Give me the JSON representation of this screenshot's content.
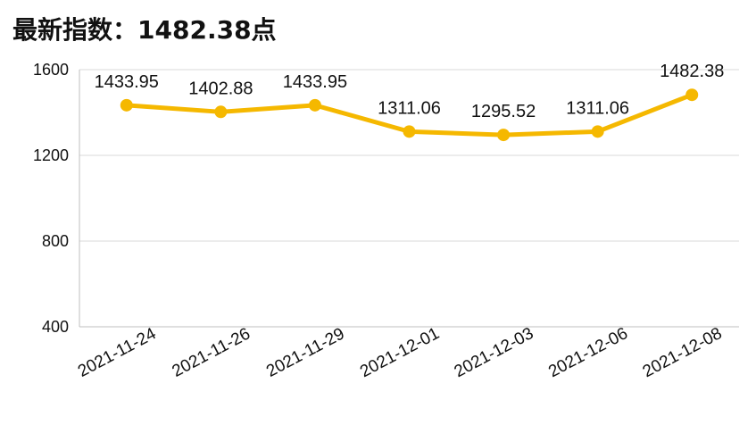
{
  "header": {
    "title_prefix": "最新指数：",
    "title_value": "1482.38点"
  },
  "chart_data": {
    "type": "line",
    "categories": [
      "2021-11-24",
      "2021-11-26",
      "2021-11-29",
      "2021-12-01",
      "2021-12-03",
      "2021-12-06",
      "2021-12-08"
    ],
    "series": [
      {
        "values": [
          1433.95,
          1402.88,
          1433.95,
          1311.06,
          1295.52,
          1311.06,
          1482.38
        ]
      }
    ],
    "data_labels": [
      "1433.95",
      "1402.88",
      "1433.95",
      "1311.06",
      "1295.52",
      "1311.06",
      "1482.38"
    ],
    "ylim": [
      400,
      1600
    ],
    "yticks": [
      400,
      800,
      1200,
      1600
    ],
    "grid": true,
    "line_color": "#f5b800",
    "grid_color": "#d9d9d9",
    "axis_color": "#bfbfbf"
  }
}
